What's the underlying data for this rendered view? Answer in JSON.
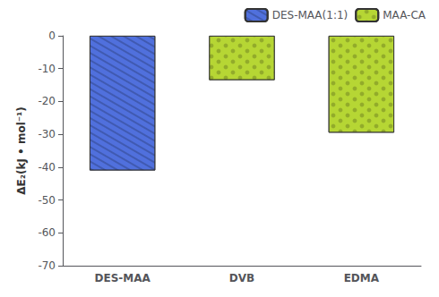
{
  "chart_data": {
    "type": "bar",
    "ylabel": "ΔE₂(kJ • mol⁻¹)",
    "categories": [
      "DES-MAA",
      "DVB",
      "EDMA"
    ],
    "series": [
      {
        "name": "DES-MAA(1:1)",
        "values": [
          -41.0,
          null,
          null
        ]
      },
      {
        "name": "MAA-CA",
        "values": [
          null,
          -13.5,
          -29.5
        ]
      }
    ],
    "ylim": [
      -70,
      0
    ],
    "yticks": [
      -70,
      -60,
      -50,
      -40,
      -30,
      -20,
      -10,
      0
    ],
    "grid": false,
    "legend": "upper right"
  }
}
